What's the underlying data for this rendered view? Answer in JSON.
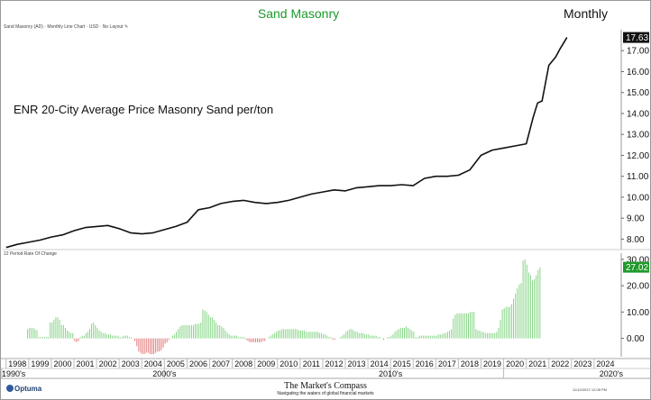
{
  "header": {
    "title": "Sand Masonry",
    "period": "Monthly",
    "meta": "Sand Masonry (AD) · Monthly Line Chart · USD · No Layout"
  },
  "annotation": "ENR 20-City Average Price Masonry Sand per/ton",
  "sub_panel_label": "12 Period Rate Of Change",
  "footer": {
    "logo": "Optuma",
    "brand": "The Market's Compass",
    "tagline": "Navigating the waters of global financial markets",
    "date": "11/10/2022 12:08 PM"
  },
  "chart_data": [
    {
      "type": "line",
      "title": "Sand Masonry",
      "series": [
        {
          "name": "ENR 20-City Average Price Masonry Sand per/ton",
          "color": "#111111"
        }
      ],
      "x_unit": "year",
      "x": [
        1998.0,
        1998.5,
        1999.0,
        1999.5,
        2000.0,
        2000.5,
        2001.0,
        2001.5,
        2002.0,
        2002.5,
        2003.0,
        2003.5,
        2004.0,
        2004.5,
        2005.0,
        2005.5,
        2006.0,
        2006.5,
        2007.0,
        2007.5,
        2008.0,
        2008.5,
        2009.0,
        2009.5,
        2010.0,
        2010.5,
        2011.0,
        2011.5,
        2012.0,
        2012.5,
        2013.0,
        2013.5,
        2014.0,
        2014.5,
        2015.0,
        2015.5,
        2016.0,
        2016.5,
        2017.0,
        2017.5,
        2018.0,
        2018.5,
        2019.0,
        2019.5,
        2020.0,
        2020.5,
        2021.0,
        2021.3,
        2021.5,
        2021.7,
        2022.0,
        2022.3,
        2022.5,
        2022.8
      ],
      "y": [
        7.6,
        7.75,
        7.85,
        7.95,
        8.1,
        8.2,
        8.4,
        8.55,
        8.6,
        8.65,
        8.5,
        8.3,
        8.25,
        8.3,
        8.45,
        8.6,
        8.8,
        9.4,
        9.5,
        9.7,
        9.8,
        9.85,
        9.75,
        9.7,
        9.75,
        9.85,
        10.0,
        10.15,
        10.25,
        10.35,
        10.3,
        10.45,
        10.5,
        10.55,
        10.55,
        10.6,
        10.55,
        10.9,
        11.0,
        11.0,
        11.05,
        11.3,
        12.0,
        12.25,
        12.35,
        12.45,
        12.55,
        13.8,
        14.5,
        14.6,
        16.3,
        16.7,
        17.1,
        17.63
      ],
      "ylim": [
        7.5,
        18.0
      ],
      "y_ticks": [
        "8.00",
        "9.00",
        "10.00",
        "11.00",
        "12.00",
        "13.00",
        "14.00",
        "15.00",
        "16.00",
        "17.00"
      ],
      "last_value_label": "17.63",
      "grid": false
    },
    {
      "type": "bar",
      "title": "12 Period Rate Of Change",
      "x_unit": "year",
      "x_start": 1998.95,
      "step_years": 0.0833,
      "values": [
        3.5,
        4,
        4,
        4,
        3.5,
        3,
        0.5,
        0.5,
        0.5,
        0.5,
        0.5,
        0.5,
        6,
        6,
        7,
        8,
        8,
        7,
        5,
        5,
        4,
        3,
        2.5,
        2,
        2,
        -1,
        -1.5,
        -1,
        0.5,
        1,
        1,
        2,
        2.5,
        3.5,
        5.5,
        6,
        5,
        4,
        3,
        2.5,
        2,
        2,
        1.5,
        1.5,
        1.5,
        1,
        1,
        1,
        1,
        0.5,
        0.5,
        1,
        1,
        1,
        0.5,
        0.5,
        0,
        -1,
        -3,
        -5,
        -5.5,
        -6,
        -6,
        -5.5,
        -5.5,
        -6,
        -6,
        -6,
        -5.5,
        -5,
        -5,
        -4.5,
        -3.5,
        -2,
        -1.5,
        -0.5,
        0,
        1,
        1.5,
        2.5,
        3.5,
        4.5,
        5,
        5,
        5,
        5,
        5,
        5,
        5,
        5.5,
        5.5,
        5.5,
        6,
        11,
        10.5,
        10,
        9,
        8,
        8,
        7,
        6,
        5,
        5,
        4.5,
        4,
        3,
        2,
        1.5,
        1,
        1,
        1,
        1,
        0.5,
        0.5,
        0.5,
        0.5,
        -0.5,
        -1,
        -1.5,
        -1.5,
        -1.5,
        -1.5,
        -1.5,
        -1.5,
        -1.5,
        -1,
        -1,
        0,
        0.5,
        1,
        1.5,
        2,
        2.5,
        3,
        3,
        3.5,
        3.5,
        3.5,
        3.5,
        3.5,
        3.5,
        3.5,
        3.5,
        3.5,
        3,
        3,
        3,
        3,
        2.5,
        2.5,
        2.5,
        2.5,
        2.5,
        2.5,
        2.5,
        2,
        2,
        1.5,
        1.5,
        1,
        0.5,
        0.5,
        -0.5,
        -0.5,
        0,
        0,
        0.5,
        1,
        1.5,
        2.5,
        3,
        3.5,
        3.5,
        3,
        2.5,
        2.5,
        2,
        2,
        2,
        1.5,
        1.5,
        1.5,
        1,
        1,
        1,
        1,
        0.5,
        0.5,
        0,
        -0.5,
        0,
        0.5,
        0.5,
        1,
        1.5,
        2.5,
        3,
        3.5,
        4,
        4,
        4,
        4.5,
        4,
        3.5,
        3,
        2.5,
        0.5,
        0.5,
        1,
        1,
        1,
        1,
        1,
        1,
        1,
        1,
        1,
        1,
        1.5,
        1.5,
        1.5,
        2,
        2,
        2.5,
        3,
        3.5,
        7.5,
        9,
        9.5,
        9.5,
        9.5,
        9.5,
        9.5,
        9.5,
        9.5,
        10,
        10,
        10,
        3.5,
        3,
        3,
        2.5,
        2.5,
        2,
        2,
        2,
        2,
        2,
        2,
        2.5,
        4,
        7,
        11,
        11.5,
        12,
        12,
        12,
        13,
        15,
        17,
        19,
        20.5,
        21,
        29.5,
        30,
        28,
        25,
        24,
        22,
        22.5,
        24,
        26,
        27.02
      ],
      "ylim": [
        -7,
        31
      ],
      "y_ticks": [
        "0.00",
        "10.00",
        "20.00",
        "30.00"
      ],
      "last_value_label": "27.02",
      "colors": {
        "positive": "#7bd07b",
        "negative": "#e06a6a"
      }
    }
  ],
  "x_axis": {
    "range": [
      1997.85,
      2025.2
    ],
    "year_labels": [
      "1998",
      "1999",
      "2000",
      "2001",
      "2002",
      "2003",
      "2004",
      "2005",
      "2006",
      "2007",
      "2008",
      "2009",
      "2010",
      "2011",
      "2012",
      "2013",
      "2014",
      "2015",
      "2016",
      "2017",
      "2018",
      "2019",
      "2020",
      "2021",
      "2022",
      "2023",
      "2024"
    ],
    "decade_labels": [
      {
        "label": "1990's",
        "year": 1990
      },
      {
        "label": "2000's",
        "year": 2005
      },
      {
        "label": "2010's",
        "year": 2015
      },
      {
        "label": "2020's",
        "year": 2020
      }
    ]
  }
}
